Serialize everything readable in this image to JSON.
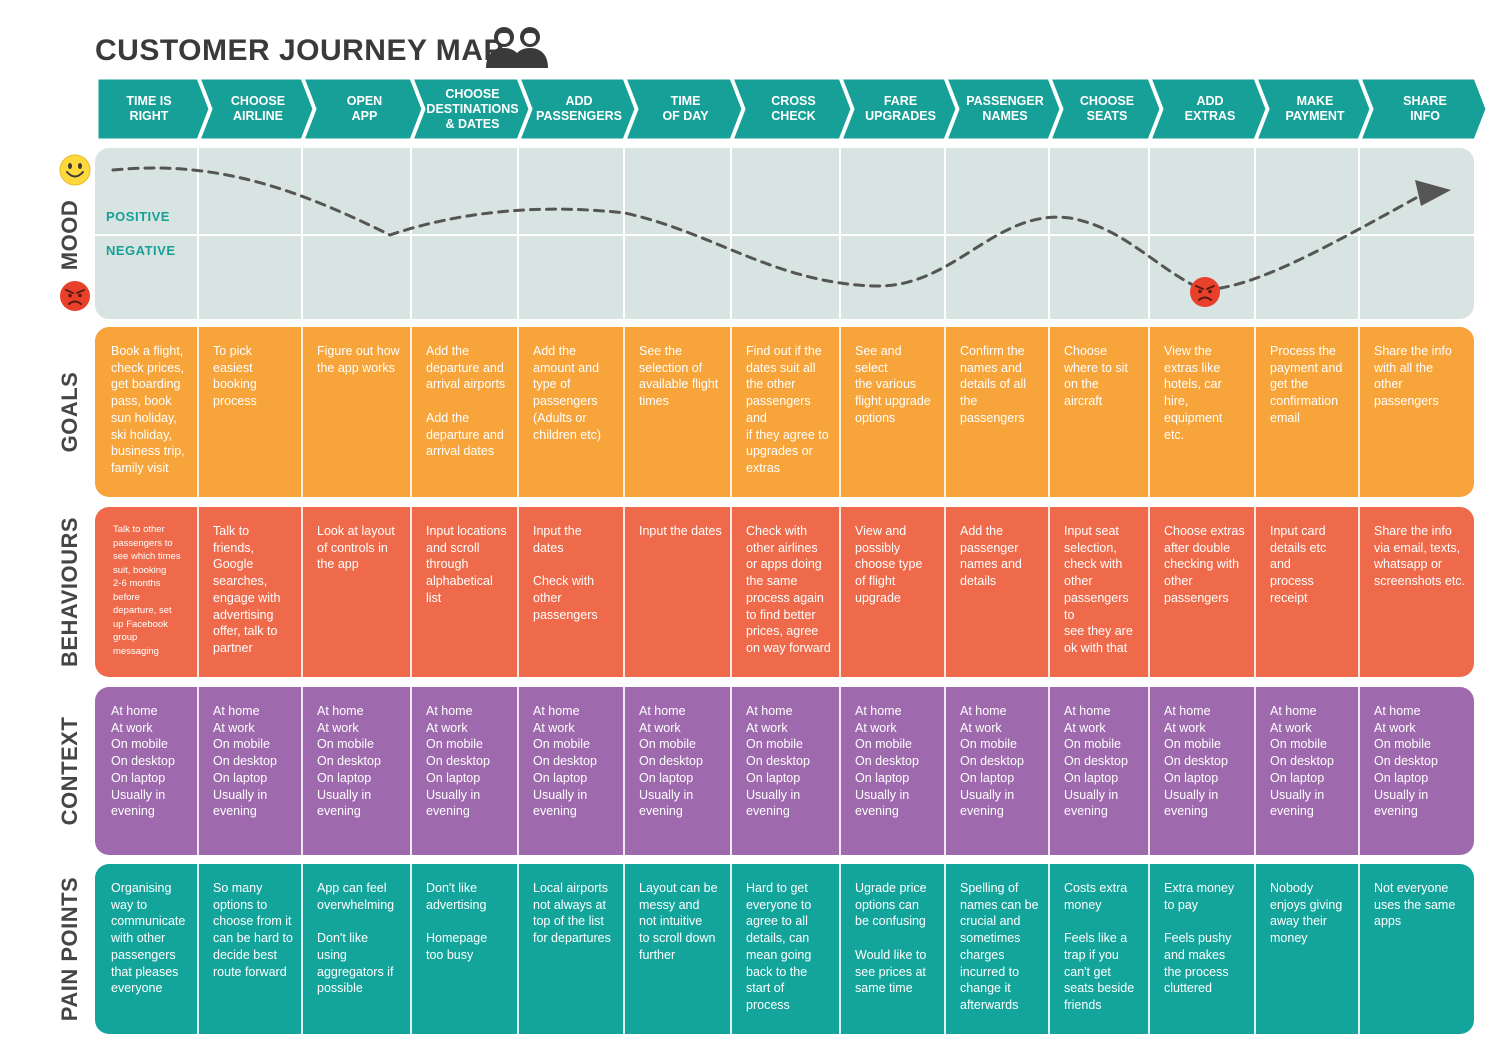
{
  "title": "CUSTOMER JOURNEY MAP",
  "icons": {
    "people": "people-icon",
    "happy": "smiley-face-icon",
    "angry": "angry-face-icon"
  },
  "colors": {
    "teal": "#17a097",
    "goals": "#f7a43a",
    "behaviours": "#ef6a4a",
    "context": "#9e69ad",
    "pain_points": "#13a59b",
    "mood_bg": "#d8e4e1"
  },
  "stages": [
    "TIME IS\nRIGHT",
    "CHOOSE\nAIRLINE",
    "OPEN\nAPP",
    "CHOOSE\nDESTINATIONS\n& DATES",
    "ADD\nPASSENGERS",
    "TIME\nOF DAY",
    "CROSS\nCHECK",
    "FARE\nUPGRADES",
    "PASSENGER\nNAMES",
    "CHOOSE\nSEATS",
    "ADD\nEXTRAS",
    "MAKE\nPAYMENT",
    "SHARE\nINFO"
  ],
  "mood": {
    "label": "MOOD",
    "positive_label": "POSITIVE",
    "negative_label": "NEGATIVE"
  },
  "goals": {
    "label": "GOALS",
    "cells": [
      "Book a flight,\ncheck prices,\nget boarding\npass, book\nsun holiday,\nski holiday,\nbusiness trip,\nfamily visit",
      "To pick easiest\nbooking\nprocess",
      "Figure out how\nthe app works",
      "Add the\ndeparture and\narrival airports\n\nAdd the\ndeparture and\narrival dates",
      "Add the\namount and\ntype of\npassengers\n(Adults or\nchildren etc)",
      "See the\nselection of\navailable flight\ntimes",
      "Find out if the\ndates suit all\nthe other\npassengers and\nif they agree to\nupgrades or\nextras",
      "See and select\nthe various\nflight upgrade\noptions",
      "Confirm the\nnames and\ndetails of all\nthe\npassengers",
      "Choose\nwhere to sit\non the\naircraft",
      "View the\nextras like\nhotels, car\nhire,\nequipment\netc.",
      "Process the\npayment and\nget the\nconfirmation\nemail",
      "Share the info\nwith all the\nother passengers"
    ]
  },
  "behaviours": {
    "label": "BEHAVIOURS",
    "cells": [
      "Talk to other\npassengers to\nsee which times\nsuit, booking\n2-6 months\nbefore\ndeparture, set\nup Facebook\ngroup\nmessaging",
      "Talk to\nfriends,\nGoogle\nsearches,\nengage with\nadvertising\noffer, talk to\npartner",
      "Look at layout\nof controls in\nthe app",
      "Input locations\nand scroll\nthrough\nalphabetical\nlist",
      "Input the dates\n\nCheck with\nother\npassengers",
      "Input the dates",
      "Check with\nother airlines\nor apps doing\nthe same\nprocess again\nto find better\nprices, agree\non way forward",
      "View and\npossibly\nchoose type\nof flight\nupgrade",
      "Add the\npassenger\nnames and\ndetails",
      "Input seat\nselection,\ncheck with\nother\npassengers to\nsee they are\nok with that",
      "Choose extras\nafter double\nchecking with\nother\npassengers",
      "Input card\ndetails etc and\nprocess\nreceipt",
      "Share the info\nvia email, texts,\nwhatsapp or\nscreenshots etc."
    ]
  },
  "context": {
    "label": "CONTEXT",
    "cells": [
      "At home\nAt work\nOn mobile\nOn desktop\nOn laptop\nUsually in\nevening",
      "At home\nAt work\nOn mobile\nOn desktop\nOn laptop\nUsually in\nevening",
      "At home\nAt work\nOn mobile\nOn desktop\nOn laptop\nUsually in\nevening",
      "At home\nAt work\nOn mobile\nOn desktop\nOn laptop\nUsually in\nevening",
      "At home\nAt work\nOn mobile\nOn desktop\nOn laptop\nUsually in\nevening",
      "At home\nAt work\nOn mobile\nOn desktop\nOn laptop\nUsually in\nevening",
      "At home\nAt work\nOn mobile\nOn desktop\nOn laptop\nUsually in\nevening",
      "At home\nAt work\nOn mobile\nOn desktop\nOn laptop\nUsually in\nevening",
      "At home\nAt work\nOn mobile\nOn desktop\nOn laptop\nUsually in\nevening",
      "At home\nAt work\nOn mobile\nOn desktop\nOn laptop\nUsually in\nevening",
      "At home\nAt work\nOn mobile\nOn desktop\nOn laptop\nUsually in\nevening",
      "At home\nAt work\nOn mobile\nOn desktop\nOn laptop\nUsually in\nevening",
      "At home\nAt work\nOn mobile\nOn desktop\nOn laptop\nUsually in\nevening"
    ]
  },
  "pain_points": {
    "label": "PAIN POINTS",
    "cells": [
      "Organising\nway to\ncommunicate\nwith other\npassengers\nthat pleases\neveryone",
      "So many\noptions to\nchoose from it\ncan be hard to\ndecide best\nroute forward",
      "App can feel\noverwhelming\n\nDon't like\nusing\naggregators if\npossible",
      "Don't like\nadvertising\n\nHomepage\ntoo busy",
      "Local airports\nnot always at\ntop of the list\nfor departures",
      "Layout can be\nmessy and\nnot intuitive\nto scroll down\nfurther",
      "Hard to get\neveryone to\nagree to all\ndetails, can\nmean going\nback to the\nstart of process",
      "Ugrade price\noptions can\nbe confusing\n\nWould like to\nsee prices at\nsame time",
      "Spelling of\nnames can be\ncrucial and\nsometimes\ncharges\nincurred to\nchange it\nafterwards",
      "Costs extra\nmoney\n\nFeels like a\ntrap if you\ncan't get\nseats beside\nfriends",
      "Extra money\nto pay\n\nFeels pushy\nand makes\nthe process\ncluttered",
      "Nobody\nenjoys giving\naway their\nmoney",
      "Not everyone\nuses the same\napps"
    ]
  }
}
